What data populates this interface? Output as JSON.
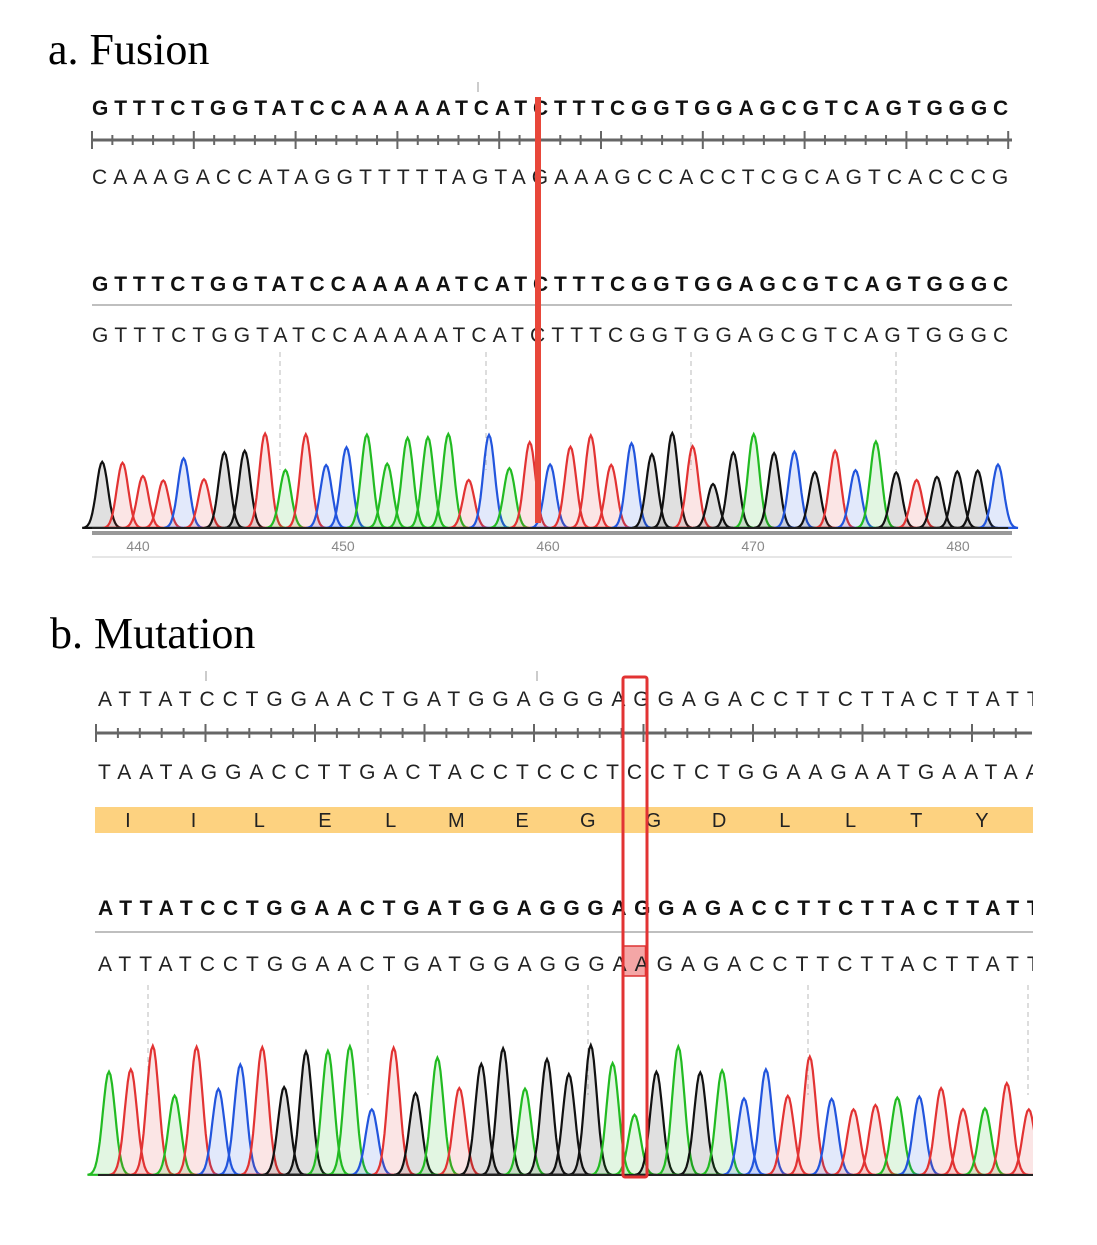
{
  "panel_a": {
    "title": "a. Fusion",
    "reference_top": "GTTTCTGGTATCCAAAAATCATCTTTCGGTGGAGCGTCAGTGGGC",
    "reference_complement": "CAAAGACCATAGGTTTTTAGTAGAAAGCCACCTCGCAGTCACCCG",
    "sample_consensus": "GTTTCTGGTATCCAAAAATCATCTTTCGGTGGAGCGTCAGTGGGC",
    "sample_read": "GTTTCTGGTATCCAAAAATCATCTTTCGGTGGAGCGTCAGTGGGC",
    "positions": [
      440,
      450,
      460,
      470,
      480
    ]
  },
  "panel_b": {
    "title": "b. Mutation",
    "reference_top": "ATTATCCTGGAACTGATGGAGGGAGGAGACCTTCTTACTTATT",
    "reference_complement": "TAATAGGACCTTGACTACCTCCCTCCTCTGGAAGAATGAATAA",
    "translation": [
      "I",
      "I",
      "L",
      "E",
      "L",
      "M",
      "E",
      "G",
      "G",
      "D",
      "L",
      "L",
      "T",
      "Y"
    ],
    "sample_consensus": "ATTATCCTGGAACTGATGGAGGGAGGAGACCTTCTTACTTATT",
    "sample_read": "ATTATCCTGGAACTGATGGAGGGAAGAGACCTTCTTACTTATT"
  }
}
